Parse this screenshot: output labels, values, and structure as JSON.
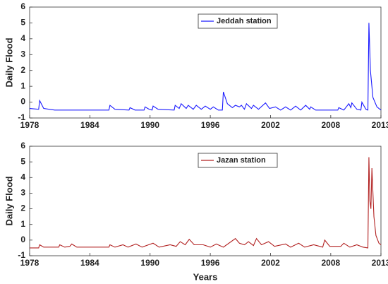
{
  "chart_data": [
    {
      "type": "line",
      "ylabel": "Daily Flood",
      "xlim": [
        1978,
        2013
      ],
      "ylim": [
        -1,
        6
      ],
      "xticks": [
        1978,
        1984,
        1990,
        1996,
        2002,
        2008,
        2013
      ],
      "yticks": [
        -1,
        0,
        1,
        2,
        3,
        4,
        5,
        6
      ],
      "legend": "upper center",
      "x": [
        1978,
        1978.9,
        1979.0,
        1979.4,
        1980.5,
        1985.9,
        1986.0,
        1986.5,
        1987.9,
        1988.0,
        1988.5,
        1989.4,
        1989.5,
        1989.9,
        1990.2,
        1990.3,
        1990.8,
        1992.4,
        1992.5,
        1992.9,
        1993.1,
        1993.6,
        1993.8,
        1994.3,
        1994.6,
        1995.1,
        1995.5,
        1996.0,
        1996.3,
        1996.8,
        1997.2,
        1997.3,
        1997.7,
        1998.2,
        1998.5,
        1998.9,
        1999.1,
        1999.4,
        1999.6,
        2000.1,
        2000.3,
        2000.8,
        2001.5,
        2001.9,
        2002.5,
        2003.0,
        2003.5,
        2004.0,
        2004.5,
        2005.0,
        2005.5,
        2005.9,
        2006.0,
        2006.5,
        2008.7,
        2008.8,
        2009.3,
        2009.8,
        2010.0,
        2010.1,
        2010.6,
        2011.0,
        2011.1,
        2011.5,
        2011.7,
        2011.8,
        2011.95,
        2012.2,
        2012.6,
        2013.0
      ],
      "series": [
        {
          "name": "Jeddah station",
          "color": "#1a1aff",
          "values": [
            -0.4,
            -0.45,
            0.1,
            -0.4,
            -0.5,
            -0.5,
            -0.2,
            -0.45,
            -0.5,
            -0.35,
            -0.5,
            -0.5,
            -0.3,
            -0.45,
            -0.5,
            -0.25,
            -0.45,
            -0.5,
            -0.2,
            -0.4,
            -0.1,
            -0.4,
            -0.2,
            -0.45,
            -0.2,
            -0.45,
            -0.25,
            -0.45,
            -0.3,
            -0.5,
            -0.5,
            0.65,
            -0.1,
            -0.35,
            -0.2,
            -0.3,
            -0.2,
            -0.45,
            -0.1,
            -0.4,
            -0.2,
            -0.45,
            -0.05,
            -0.4,
            -0.3,
            -0.5,
            -0.3,
            -0.5,
            -0.25,
            -0.5,
            -0.2,
            -0.45,
            -0.3,
            -0.5,
            -0.5,
            -0.35,
            -0.5,
            -0.1,
            -0.35,
            -0.05,
            -0.45,
            -0.5,
            0,
            -0.45,
            -0.5,
            5.0,
            2.0,
            0.3,
            -0.3,
            -0.5
          ]
        }
      ]
    },
    {
      "type": "line",
      "ylabel": "Daily Flood",
      "xlabel": "Years",
      "xlim": [
        1978,
        2013
      ],
      "ylim": [
        -1,
        6
      ],
      "xticks": [
        1978,
        1984,
        1990,
        1996,
        2002,
        2008,
        2013
      ],
      "yticks": [
        -1,
        0,
        1,
        2,
        3,
        4,
        5,
        6
      ],
      "legend": "upper center",
      "x": [
        1978,
        1978.9,
        1979.0,
        1979.4,
        1980.9,
        1981.0,
        1981.5,
        1982.0,
        1982.2,
        1982.7,
        1985.9,
        1986.0,
        1986.5,
        1987.3,
        1987.8,
        1988.6,
        1989.2,
        1990.3,
        1990.9,
        1992.0,
        1992.6,
        1993.0,
        1993.5,
        1993.9,
        1994.4,
        1995.3,
        1996.0,
        1996.6,
        1997.3,
        1998.5,
        1998.9,
        1999.4,
        1999.8,
        2000.3,
        2000.6,
        2001.1,
        2001.8,
        2002.4,
        2003.5,
        2004.0,
        2004.8,
        2005.4,
        2006.3,
        2007.2,
        2007.4,
        2007.9,
        2009.0,
        2009.3,
        2009.9,
        2010.6,
        2011.2,
        2011.7,
        2011.8,
        2011.9,
        2012.0,
        2012.1,
        2012.3,
        2012.5,
        2012.8,
        2013.0
      ],
      "series": [
        {
          "name": "Jazan station",
          "color": "#b22222",
          "values": [
            -0.5,
            -0.5,
            -0.3,
            -0.45,
            -0.45,
            -0.3,
            -0.45,
            -0.4,
            -0.25,
            -0.45,
            -0.45,
            -0.3,
            -0.45,
            -0.3,
            -0.45,
            -0.25,
            -0.45,
            -0.2,
            -0.45,
            -0.3,
            -0.4,
            -0.1,
            -0.3,
            0.05,
            -0.3,
            -0.3,
            -0.45,
            -0.25,
            -0.45,
            0.1,
            -0.2,
            -0.3,
            -0.1,
            -0.35,
            0.1,
            -0.3,
            -0.1,
            -0.4,
            -0.25,
            -0.45,
            -0.2,
            -0.45,
            -0.3,
            -0.45,
            0,
            -0.4,
            -0.4,
            -0.2,
            -0.45,
            -0.3,
            -0.45,
            -0.5,
            5.3,
            2.5,
            2.0,
            4.6,
            1.5,
            0.3,
            -0.2,
            -0.3
          ]
        }
      ]
    }
  ]
}
